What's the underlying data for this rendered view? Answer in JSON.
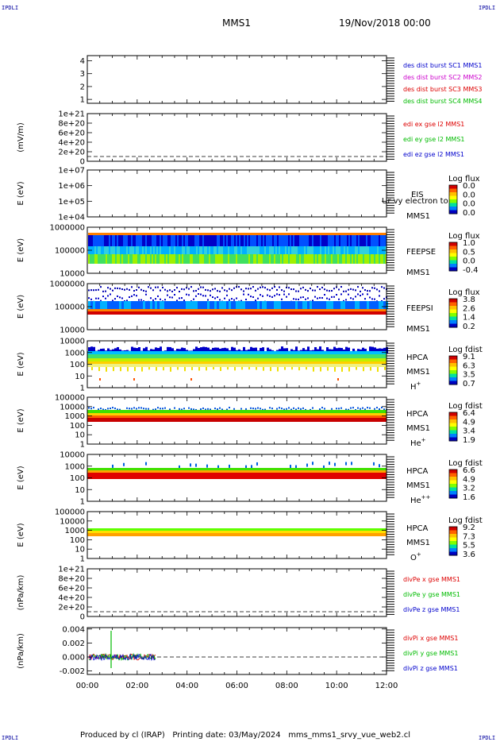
{
  "header": {
    "corner_tl": "IPDLI",
    "corner_tr": "IPDLI",
    "corner_bl": "IPDLI",
    "corner_br": "IPDLI",
    "title": "MMS1",
    "datetime": "19/Nov/2018 00:00"
  },
  "footer": {
    "text": "Produced by cl (IRAP)   Printing date: 03/May/2024   mms_mms1_srvy_vue_web2.cl"
  },
  "chart_data": {
    "type": "multi-panel time series / spectrogram stack",
    "x_axis": {
      "ticks": [
        "00:00",
        "02:00",
        "04:00",
        "06:00",
        "08:00",
        "10:00",
        "12:00"
      ],
      "range_hours": [
        0,
        12
      ]
    },
    "panels": [
      {
        "id": "p1",
        "type": "line",
        "ylabel": "",
        "yticks": [
          "1",
          "2",
          "3",
          "4"
        ],
        "ylim": [
          0.7,
          4.4
        ],
        "legend": [
          {
            "text": "des dist burst SC1 MMS1",
            "color": "#0000cc"
          },
          {
            "text": "des dist burst SC2 MMS2",
            "color": "#cc00cc"
          },
          {
            "text": "des dist burst SC3 MMS3",
            "color": "#dd0000"
          },
          {
            "text": "des dist burst SC4 MMS4",
            "color": "#00bb00"
          }
        ]
      },
      {
        "id": "p2",
        "type": "line",
        "ylabel": "(mV/m)",
        "yticks": [
          "0",
          "2e+20",
          "4e+20",
          "6e+20",
          "8e+20",
          "1e+21"
        ],
        "legend": [
          {
            "text": "edi ex gse l2 MMS1",
            "color": "#dd0000"
          },
          {
            "text": "edi ey gse l2 MMS1",
            "color": "#00bb00"
          },
          {
            "text": "edi ez gse l2 MMS1",
            "color": "#0000cc"
          }
        ]
      },
      {
        "id": "p3",
        "type": "spectrogram",
        "ylabel": "E (eV)",
        "yticks": [
          "1e+04",
          "1e+05",
          "1e+06",
          "1e+07"
        ],
        "instrument": [
          "EIS",
          "MMS1"
        ],
        "overlay_text": "Ur vy electron to",
        "colorbar": {
          "label": "Log flux",
          "ticks": [
            "0.0",
            "0.0",
            "0.0",
            "0.0"
          ]
        }
      },
      {
        "id": "p4",
        "type": "spectrogram",
        "ylabel": "E (eV)",
        "yticks": [
          "10000",
          "100000",
          "1000000"
        ],
        "instrument": [
          "FEEPSE",
          "MMS1"
        ],
        "colorbar": {
          "label": "Log flux",
          "ticks": [
            "1.0",
            "0.5",
            "0.0",
            "-0.4"
          ]
        }
      },
      {
        "id": "p5",
        "type": "spectrogram",
        "ylabel": "E (eV)",
        "yticks": [
          "10000",
          "100000",
          "1000000"
        ],
        "instrument": [
          "FEEPSI",
          "MMS1"
        ],
        "colorbar": {
          "label": "Log flux",
          "ticks": [
            "3.8",
            "2.6",
            "1.4",
            "0.2"
          ]
        }
      },
      {
        "id": "p6",
        "type": "spectrogram",
        "ylabel": "E (eV)",
        "yticks": [
          "1",
          "10",
          "100",
          "1000",
          "10000"
        ],
        "instrument": [
          "HPCA",
          "MMS1"
        ],
        "species": "H",
        "species_sup": "+",
        "colorbar": {
          "label": "Log fdist",
          "ticks": [
            "9.1",
            "6.3",
            "3.5",
            "0.7"
          ]
        }
      },
      {
        "id": "p7",
        "type": "spectrogram",
        "ylabel": "E (eV)",
        "yticks": [
          "1",
          "10",
          "100",
          "1000",
          "10000",
          "100000"
        ],
        "instrument": [
          "HPCA",
          "MMS1"
        ],
        "species": "He",
        "species_sup": "+",
        "colorbar": {
          "label": "Log fdist",
          "ticks": [
            "6.4",
            "4.9",
            "3.4",
            "1.9"
          ]
        }
      },
      {
        "id": "p8",
        "type": "spectrogram",
        "ylabel": "E (eV)",
        "yticks": [
          "1",
          "10",
          "100",
          "1000",
          "10000"
        ],
        "instrument": [
          "HPCA",
          "MMS1"
        ],
        "species": "He",
        "species_sup": "++",
        "colorbar": {
          "label": "Log fdist",
          "ticks": [
            "6.6",
            "4.9",
            "3.2",
            "1.6"
          ]
        }
      },
      {
        "id": "p9",
        "type": "spectrogram",
        "ylabel": "E (eV)",
        "yticks": [
          "1",
          "10",
          "100",
          "1000",
          "10000",
          "100000"
        ],
        "instrument": [
          "HPCA",
          "MMS1"
        ],
        "species": "O",
        "species_sup": "+",
        "colorbar": {
          "label": "Log fdist",
          "ticks": [
            "9.2",
            "7.3",
            "5.5",
            "3.6"
          ]
        }
      },
      {
        "id": "p10",
        "type": "line",
        "ylabel": "(nPa/km)",
        "yticks": [
          "0",
          "2e+20",
          "4e+20",
          "6e+20",
          "8e+20",
          "1e+21"
        ],
        "legend": [
          {
            "text": "divPe x gse MMS1",
            "color": "#dd0000"
          },
          {
            "text": "divPe y gse MMS1",
            "color": "#00bb00"
          },
          {
            "text": "divPe z gse MMS1",
            "color": "#0000cc"
          }
        ]
      },
      {
        "id": "p11",
        "type": "line",
        "ylabel": "(nPa/km)",
        "yticks": [
          "-0.002",
          "0.000",
          "0.002",
          "0.004"
        ],
        "ylim": [
          -0.0025,
          0.0042
        ],
        "legend": [
          {
            "text": "divPi x gse MMS1",
            "color": "#dd0000"
          },
          {
            "text": "divPi y gse MMS1",
            "color": "#00bb00"
          },
          {
            "text": "divPi z gse MMS1",
            "color": "#0000cc"
          }
        ]
      }
    ]
  }
}
